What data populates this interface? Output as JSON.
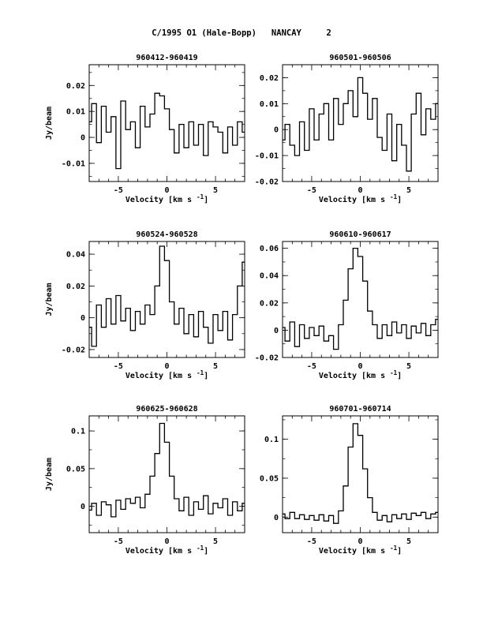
{
  "page": {
    "title": "C/1995 O1 (Hale-Bopp)   NANCAY     2"
  },
  "chart_data": [
    {
      "type": "line",
      "title": "960412-960419",
      "xlabel": "Velocity [km s",
      "xlabel_sup": "-1",
      "xlabel_end": "]",
      "ylabel": "Jy/beam",
      "xlim": [
        -8,
        8
      ],
      "ylim": [
        -0.017,
        0.028
      ],
      "xticks": [
        -5,
        0,
        5
      ],
      "yticks": [
        -0.01,
        0,
        0.01,
        0.02
      ],
      "ytick_labels": [
        "-0.01",
        "0",
        "0.01",
        "0.02"
      ],
      "x": [
        -8,
        -7.5,
        -7,
        -6.5,
        -6,
        -5.5,
        -5,
        -4.5,
        -4,
        -3.5,
        -3,
        -2.5,
        -2,
        -1.5,
        -1,
        -0.5,
        0,
        0.5,
        1,
        1.5,
        2,
        2.5,
        3,
        3.5,
        4,
        4.5,
        5,
        5.5,
        6,
        6.5,
        7,
        7.5,
        8
      ],
      "values": [
        0.006,
        0.013,
        -0.002,
        0.012,
        0.002,
        0.008,
        -0.012,
        0.014,
        0.003,
        0.006,
        -0.004,
        0.012,
        0.004,
        0.009,
        0.017,
        0.016,
        0.011,
        0.003,
        -0.006,
        0.005,
        -0.004,
        0.006,
        -0.003,
        0.005,
        -0.007,
        0.006,
        0.004,
        0.002,
        -0.006,
        0.004,
        -0.003,
        0.006,
        0.002
      ]
    },
    {
      "type": "line",
      "title": "960501-960506",
      "xlabel": "Velocity [km s",
      "xlabel_sup": "-1",
      "xlabel_end": "]",
      "ylabel": "",
      "xlim": [
        -8,
        8
      ],
      "ylim": [
        -0.02,
        0.025
      ],
      "xticks": [
        -5,
        0,
        5
      ],
      "yticks": [
        -0.02,
        -0.01,
        0,
        0.01,
        0.02
      ],
      "ytick_labels": [
        "-0.02",
        "-0.01",
        "0",
        "0.01",
        "0.02"
      ],
      "x": [
        -8,
        -7.5,
        -7,
        -6.5,
        -6,
        -5.5,
        -5,
        -4.5,
        -4,
        -3.5,
        -3,
        -2.5,
        -2,
        -1.5,
        -1,
        -0.5,
        0,
        0.5,
        1,
        1.5,
        2,
        2.5,
        3,
        3.5,
        4,
        4.5,
        5,
        5.5,
        6,
        6.5,
        7,
        7.5,
        8
      ],
      "values": [
        -0.004,
        0.002,
        -0.006,
        -0.01,
        0.003,
        -0.008,
        0.008,
        -0.004,
        0.006,
        0.01,
        -0.004,
        0.012,
        0.002,
        0.01,
        0.015,
        0.005,
        0.02,
        0.014,
        0.004,
        0.012,
        -0.003,
        -0.008,
        0.006,
        -0.012,
        0.002,
        -0.006,
        -0.016,
        0.006,
        0.014,
        -0.002,
        0.008,
        0.004,
        0.01
      ]
    },
    {
      "type": "line",
      "title": "960524-960528",
      "xlabel": "Velocity [km s",
      "xlabel_sup": "-1",
      "xlabel_end": "]",
      "ylabel": "Jy/beam",
      "xlim": [
        -8,
        8
      ],
      "ylim": [
        -0.025,
        0.048
      ],
      "xticks": [
        -5,
        0,
        5
      ],
      "yticks": [
        -0.02,
        0,
        0.02,
        0.04
      ],
      "ytick_labels": [
        "-0.02",
        "0",
        "0.02",
        "0.04"
      ],
      "x": [
        -8,
        -7.5,
        -7,
        -6.5,
        -6,
        -5.5,
        -5,
        -4.5,
        -4,
        -3.5,
        -3,
        -2.5,
        -2,
        -1.5,
        -1,
        -0.5,
        0,
        0.5,
        1,
        1.5,
        2,
        2.5,
        3,
        3.5,
        4,
        4.5,
        5,
        5.5,
        6,
        6.5,
        7,
        7.5,
        8
      ],
      "values": [
        -0.006,
        -0.018,
        0.008,
        -0.006,
        0.012,
        -0.004,
        0.014,
        -0.002,
        0.006,
        -0.008,
        0.004,
        -0.004,
        0.008,
        0.002,
        0.02,
        0.045,
        0.036,
        0.01,
        -0.004,
        0.006,
        -0.01,
        0.002,
        -0.012,
        0.004,
        -0.006,
        -0.016,
        0.002,
        -0.008,
        0.004,
        -0.014,
        0.002,
        0.02,
        0.035
      ]
    },
    {
      "type": "line",
      "title": "960610-960617",
      "xlabel": "Velocity [km s",
      "xlabel_sup": "-1",
      "xlabel_end": "]",
      "ylabel": "",
      "xlim": [
        -8,
        8
      ],
      "ylim": [
        -0.02,
        0.065
      ],
      "xticks": [
        -5,
        0,
        5
      ],
      "yticks": [
        -0.02,
        0,
        0.02,
        0.04,
        0.06
      ],
      "ytick_labels": [
        "-0.02",
        "0",
        "0.02",
        "0.04",
        "0.06"
      ],
      "x": [
        -8,
        -7.5,
        -7,
        -6.5,
        -6,
        -5.5,
        -5,
        -4.5,
        -4,
        -3.5,
        -3,
        -2.5,
        -2,
        -1.5,
        -1,
        -0.5,
        0,
        0.5,
        1,
        1.5,
        2,
        2.5,
        3,
        3.5,
        4,
        4.5,
        5,
        5.5,
        6,
        6.5,
        7,
        7.5,
        8
      ],
      "values": [
        0.002,
        -0.008,
        0.006,
        -0.012,
        0.004,
        -0.006,
        0.002,
        -0.004,
        0.003,
        -0.008,
        -0.004,
        -0.014,
        0.004,
        0.022,
        0.045,
        0.06,
        0.054,
        0.036,
        0.014,
        0.004,
        -0.006,
        0.004,
        -0.004,
        0.006,
        -0.002,
        0.004,
        -0.006,
        0.003,
        -0.002,
        0.005,
        -0.004,
        0.004,
        0.008
      ]
    },
    {
      "type": "line",
      "title": "960625-960628",
      "xlabel": "Velocity [km s",
      "xlabel_sup": "-1",
      "xlabel_end": "]",
      "ylabel": "Jy/beam",
      "xlim": [
        -8,
        8
      ],
      "ylim": [
        -0.035,
        0.12
      ],
      "xticks": [
        -5,
        0,
        5
      ],
      "yticks": [
        0,
        0.05,
        0.1
      ],
      "ytick_labels": [
        "0",
        "0.05",
        "0.1"
      ],
      "x": [
        -8,
        -7.5,
        -7,
        -6.5,
        -6,
        -5.5,
        -5,
        -4.5,
        -4,
        -3.5,
        -3,
        -2.5,
        -2,
        -1.5,
        -1,
        -0.5,
        0,
        0.5,
        1,
        1.5,
        2,
        2.5,
        3,
        3.5,
        4,
        4.5,
        5,
        5.5,
        6,
        6.5,
        7,
        7.5,
        8
      ],
      "values": [
        -0.005,
        0.004,
        -0.012,
        0.006,
        0.002,
        -0.014,
        0.008,
        -0.004,
        0.01,
        0.004,
        0.012,
        -0.002,
        0.016,
        0.04,
        0.07,
        0.11,
        0.085,
        0.04,
        0.01,
        -0.006,
        0.012,
        -0.012,
        0.006,
        -0.004,
        0.014,
        -0.01,
        0.004,
        -0.002,
        0.01,
        -0.012,
        0.006,
        -0.006,
        0.004
      ]
    },
    {
      "type": "line",
      "title": "960701-960714",
      "xlabel": "Velocity [km s",
      "xlabel_sup": "-1",
      "xlabel_end": "]",
      "ylabel": "",
      "xlim": [
        -8,
        8
      ],
      "ylim": [
        -0.02,
        0.13
      ],
      "xticks": [
        -5,
        0,
        5
      ],
      "yticks": [
        0,
        0.05,
        0.1
      ],
      "ytick_labels": [
        "0",
        "0.05",
        "0.1"
      ],
      "x": [
        -8,
        -7.5,
        -7,
        -6.5,
        -6,
        -5.5,
        -5,
        -4.5,
        -4,
        -3.5,
        -3,
        -2.5,
        -2,
        -1.5,
        -1,
        -0.5,
        0,
        0.5,
        1,
        1.5,
        2,
        2.5,
        3,
        3.5,
        4,
        4.5,
        5,
        5.5,
        6,
        6.5,
        7,
        7.5,
        8
      ],
      "values": [
        0.004,
        -0.002,
        0.006,
        -0.002,
        0.003,
        -0.003,
        0.002,
        -0.004,
        0.003,
        -0.005,
        0.002,
        -0.008,
        0.008,
        0.04,
        0.09,
        0.12,
        0.105,
        0.062,
        0.025,
        0.006,
        -0.004,
        0.002,
        -0.006,
        0.003,
        -0.002,
        0.004,
        -0.003,
        0.005,
        0.002,
        0.006,
        -0.002,
        0.004,
        0.006
      ]
    }
  ]
}
